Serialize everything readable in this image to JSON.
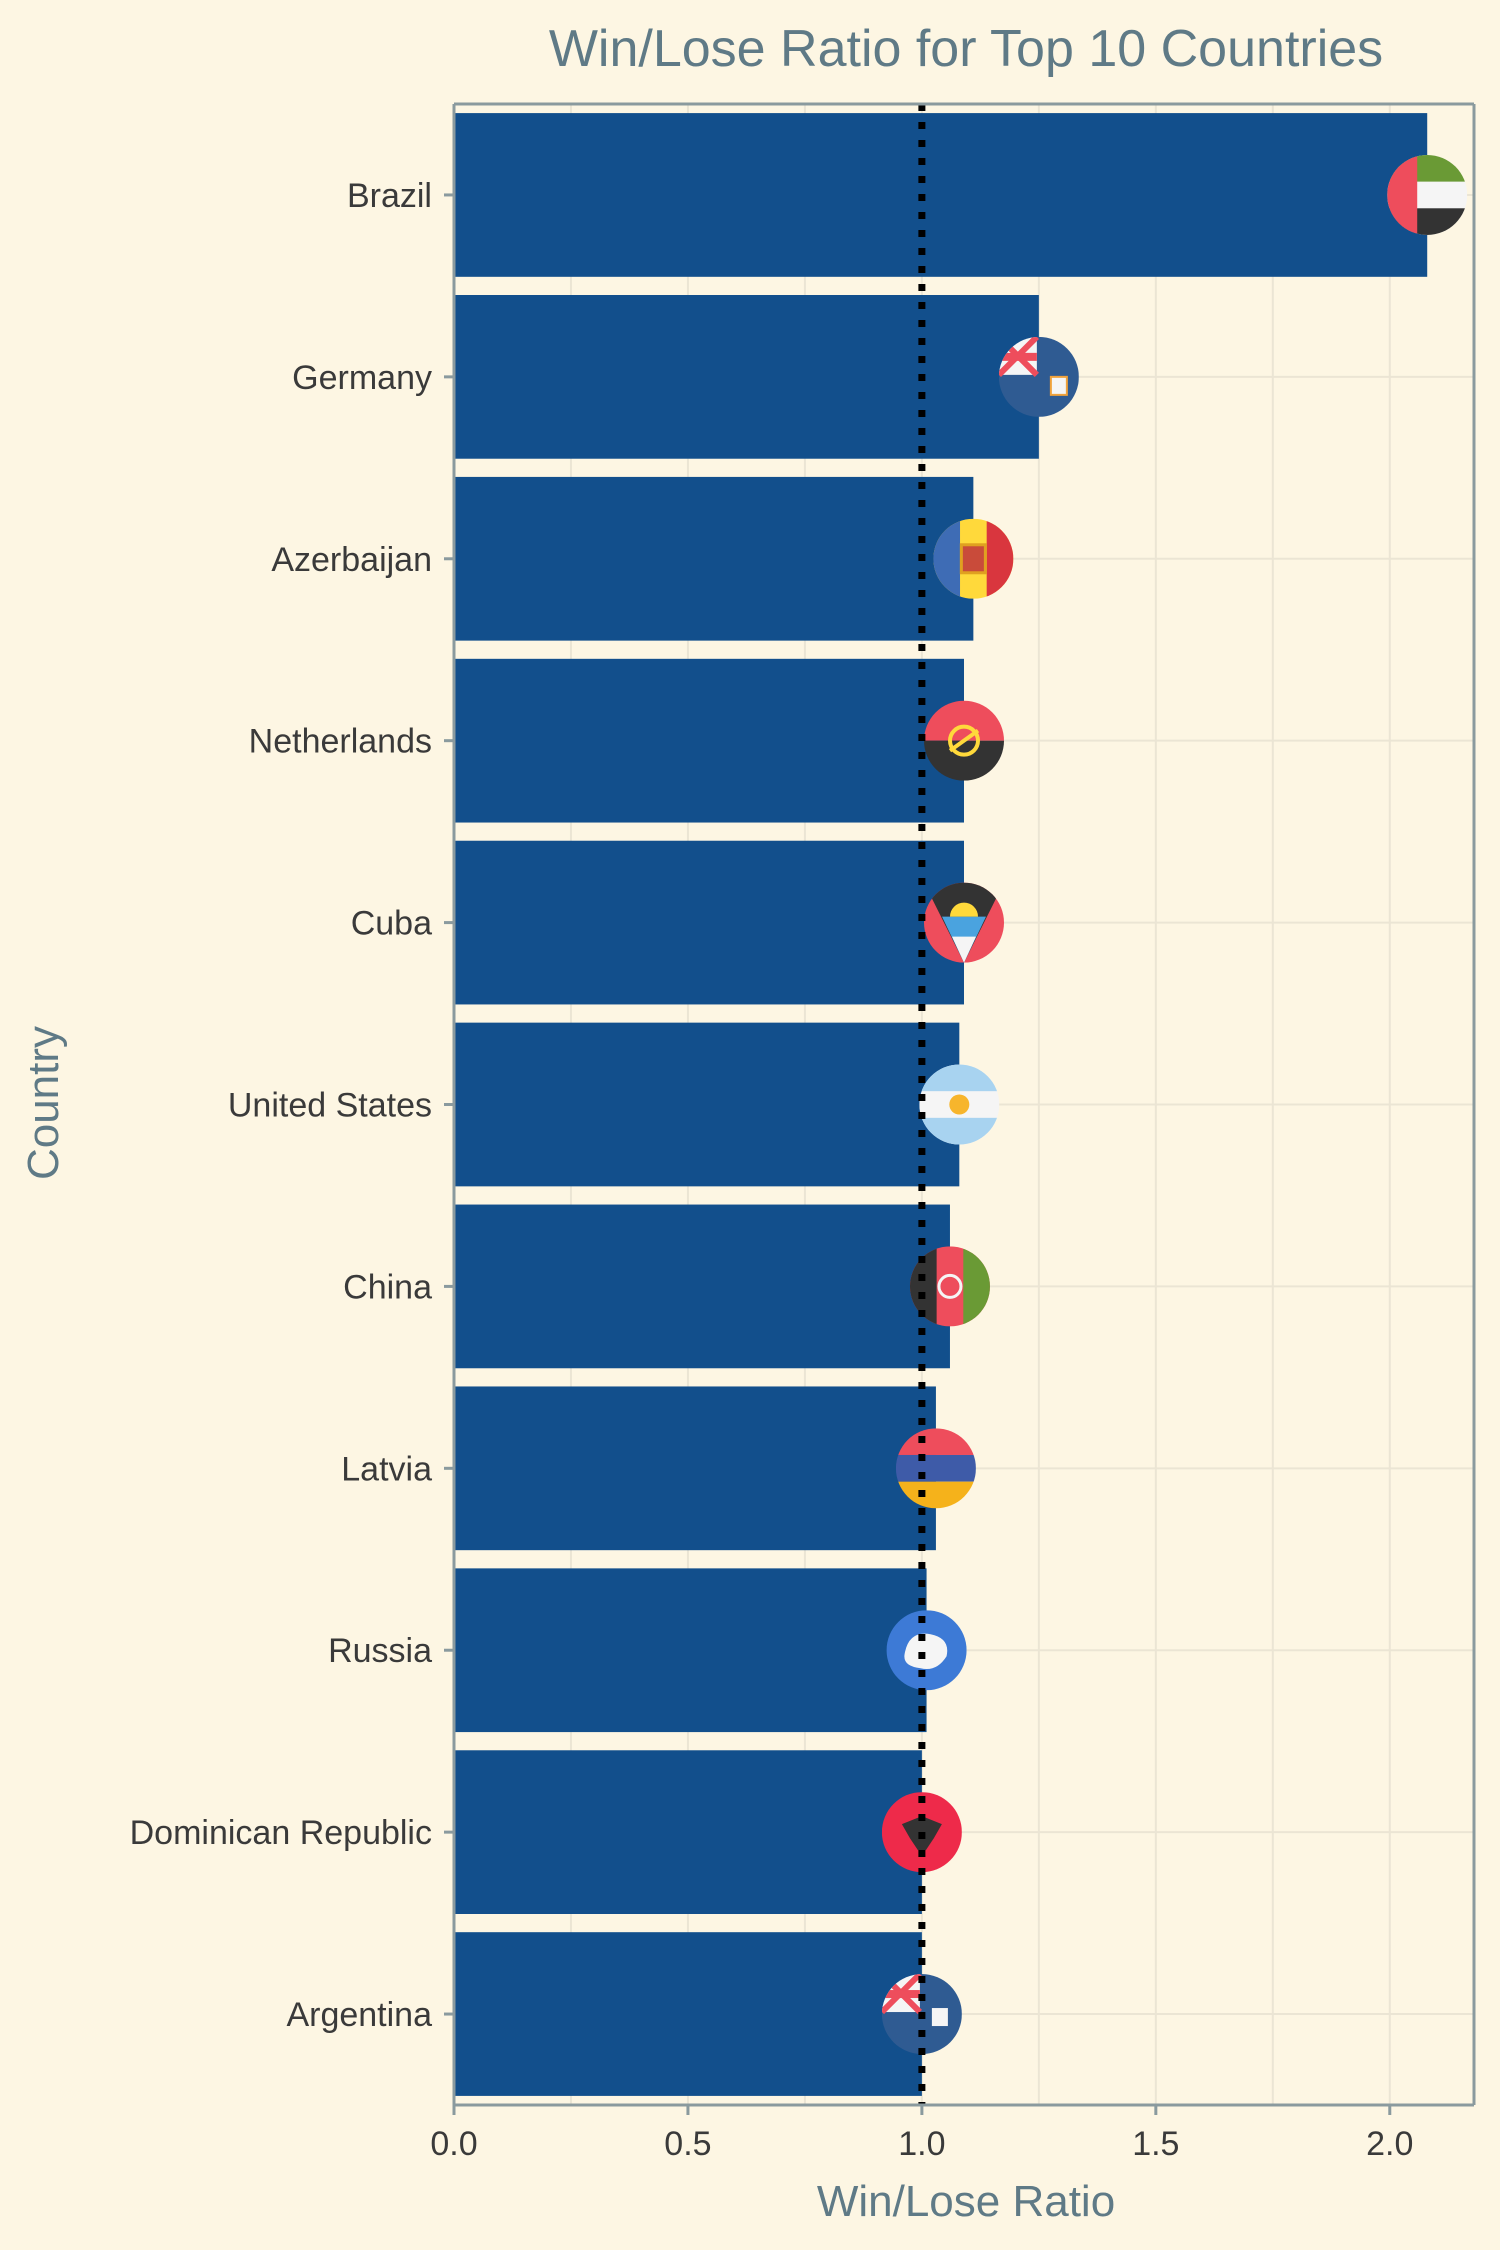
{
  "chart_data": {
    "type": "bar",
    "orientation": "horizontal",
    "title": "Win/Lose Ratio for Top 10 Countries",
    "xlabel": "Win/Lose Ratio",
    "ylabel": "Country",
    "xlim": [
      0,
      2.18
    ],
    "x_ticks": [
      "0.0",
      "0.5",
      "1.0",
      "1.5",
      "2.0"
    ],
    "reference_line": {
      "x": 1.0,
      "style": "dotted",
      "color": "#000000"
    },
    "grid": true,
    "bar_color": "#124f8c",
    "categories": [
      "Brazil",
      "Germany",
      "Azerbaijan",
      "Netherlands",
      "Cuba",
      "United States",
      "China",
      "Latvia",
      "Russia",
      "Dominican Republic",
      "Argentina"
    ],
    "values": [
      2.08,
      1.25,
      1.11,
      1.09,
      1.09,
      1.08,
      1.06,
      1.03,
      1.01,
      1.0,
      1.0
    ],
    "flag_icons": [
      "flag-uae-icon",
      "flag-anguilla-icon",
      "flag-andorra-icon",
      "flag-angola-icon",
      "flag-antigua-icon",
      "flag-argentina-icon",
      "flag-afghanistan-icon",
      "flag-armenia-icon",
      "flag-antarctica-icon",
      "flag-albania-icon",
      "flag-ascension-icon"
    ]
  },
  "colors": {
    "background": "#fdf6e3",
    "grid": "#ebe5d4",
    "axis": "#8a9a9e",
    "title": "#5f7a86",
    "tick_text": "#3a3a3a"
  }
}
